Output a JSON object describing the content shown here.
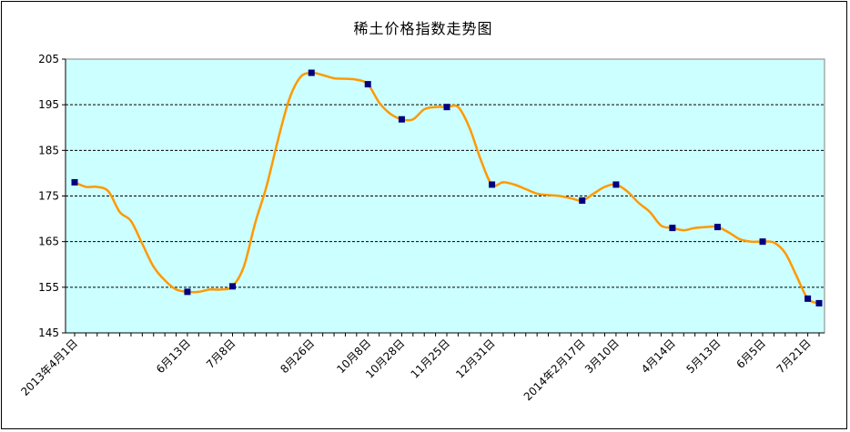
{
  "chart_data": {
    "type": "line",
    "title": "稀土价格指数走势图",
    "xlabel": "",
    "ylabel": "",
    "ylim": [
      145,
      205
    ],
    "y_ticks": [
      145,
      155,
      165,
      175,
      185,
      195,
      205
    ],
    "grid": "horizontal dashed",
    "legend": "none",
    "colors": {
      "plot_bg": "#ccffff",
      "line": "#ff9900",
      "marker": "#000080",
      "grid": "#000000"
    },
    "x_tick_labels": [
      "2013年4月1日",
      "6月13日",
      "7月8日",
      "8月26日",
      "10月8日",
      "10月28日",
      "11月25日",
      "12月31日",
      "2014年2月17日",
      "3月10日",
      "4月14日",
      "5月13日",
      "6月5日",
      "7月21日"
    ],
    "series": [
      {
        "values": [
          178,
          177,
          177,
          176,
          171.5,
          169.5,
          164.5,
          159.5,
          156.5,
          154.5,
          154,
          154,
          154.5,
          154.5,
          155.2,
          159.5,
          169,
          177,
          187,
          196,
          201,
          202,
          201.5,
          200.8,
          200.7,
          200.5,
          199.5,
          195.5,
          193,
          191.8,
          191.8,
          194,
          194.5,
          194.5,
          194.5,
          190,
          183,
          177.5,
          178,
          177.5,
          176.5,
          175.5,
          175.2,
          175,
          174.5,
          174,
          175.5,
          177,
          177.5,
          176,
          173.5,
          171.5,
          168.5,
          168,
          167.5,
          168,
          168.2,
          168.2,
          167,
          165.5,
          165,
          165,
          164.8,
          162.5,
          157.5,
          152.5,
          151.5
        ]
      }
    ],
    "marker_indices": [
      0,
      10,
      14,
      21,
      26,
      29,
      33,
      37,
      45,
      48,
      53,
      57,
      61,
      65,
      66
    ],
    "x_tick_indices": [
      0,
      10,
      14,
      21,
      26,
      29,
      33,
      37,
      45,
      48,
      53,
      57,
      61,
      65
    ]
  }
}
